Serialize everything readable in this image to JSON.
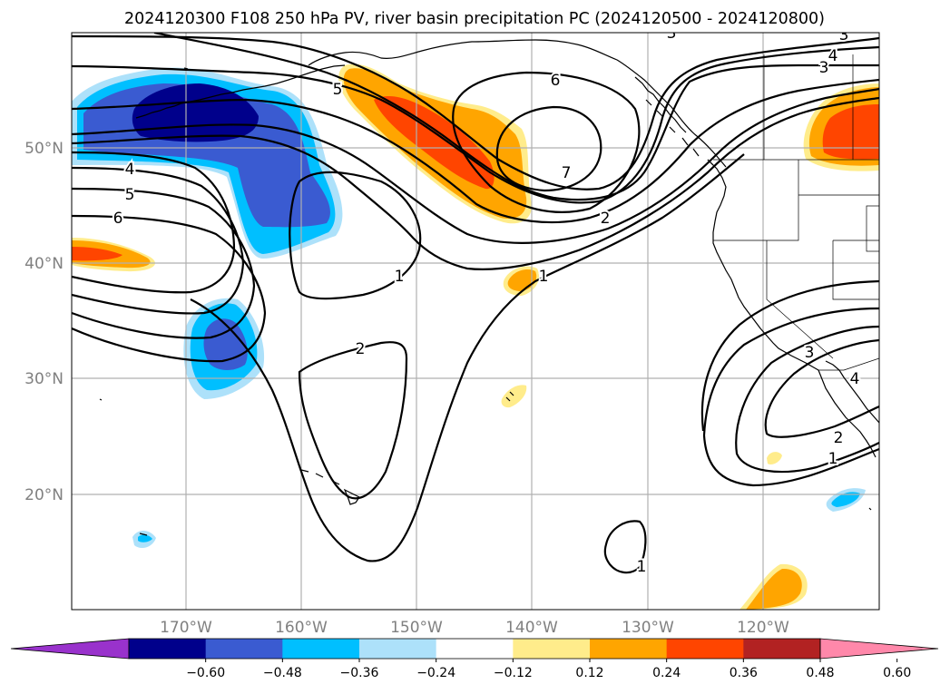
{
  "title": "2024120300 F108 250 hPa PV, river basin precipitation PC (2024120500 - 2024120800)",
  "axes": {
    "lon_labels": [
      "170°W",
      "160°W",
      "150°W",
      "140°W",
      "130°W",
      "120°W"
    ],
    "lat_labels": [
      "50°N",
      "40°N",
      "30°N",
      "20°N"
    ],
    "grid": true
  },
  "map_data": {
    "projection": "plate carree",
    "lon_range": [
      -180,
      -110
    ],
    "lat_range": [
      10,
      60
    ],
    "fields": [
      {
        "name": "250 hPa PV",
        "style": "black contours",
        "contour_labels": [
          "1",
          "2",
          "3",
          "4",
          "5",
          "6",
          "7"
        ]
      },
      {
        "name": "river basin precipitation PC",
        "style": "filled shading"
      }
    ],
    "contour_label_instances": [
      {
        "text": "4",
        "lon": -175,
        "lat": 48.2
      },
      {
        "text": "5",
        "lon": -175,
        "lat": 46.2
      },
      {
        "text": "6",
        "lon": -176,
        "lat": 44
      },
      {
        "text": "5",
        "lon": -156.8,
        "lat": 55.6
      },
      {
        "text": "6",
        "lon": -143.5,
        "lat": 57.2
      },
      {
        "text": "7",
        "lon": -138.5,
        "lat": 47.8
      },
      {
        "text": "2",
        "lon": -133.5,
        "lat": 44
      },
      {
        "text": "1",
        "lon": -149,
        "lat": 38.8
      },
      {
        "text": "1",
        "lon": -139,
        "lat": 38.8
      },
      {
        "text": "2",
        "lon": -152.5,
        "lat": 33
      },
      {
        "text": "1",
        "lon": -134,
        "lat": 14.2
      },
      {
        "text": "3",
        "lon": -121.5,
        "lat": 32.2
      },
      {
        "text": "4",
        "lon": -113,
        "lat": 29.6
      },
      {
        "text": "2",
        "lon": -117,
        "lat": 25.1
      },
      {
        "text": "1",
        "lon": -117.3,
        "lat": 23.2
      },
      {
        "text": "3",
        "lon": -122.5,
        "lat": 61.3
      },
      {
        "text": "3",
        "lon": -117,
        "lat": 57.5
      },
      {
        "text": "4",
        "lon": -115.9,
        "lat": 58.6
      },
      {
        "text": "3",
        "lon": -116.5,
        "lat": 60.5
      }
    ]
  },
  "colorbar": {
    "tick_labels": [
      "−0.60",
      "−0.48",
      "−0.36",
      "−0.24",
      "−0.12",
      "0.12",
      "0.24",
      "0.36",
      "0.48",
      "0.60"
    ],
    "colors": [
      "#9932CC",
      "#00008B",
      "#3A5BD1",
      "#00BFFF",
      "#ADE1FA",
      "#FFFFFF",
      "#FFEC8B",
      "#FFA500",
      "#FF4500",
      "#B22222",
      "#FF88AA"
    ],
    "extend": "both"
  }
}
